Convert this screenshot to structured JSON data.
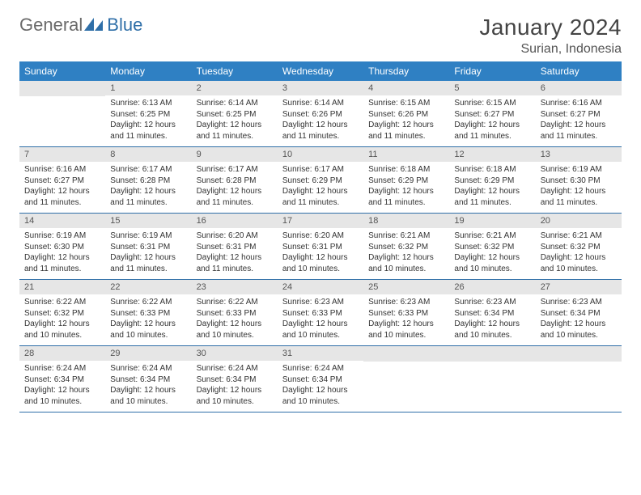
{
  "logo": {
    "textGray": "General",
    "textBlue": "Blue"
  },
  "title": "January 2024",
  "location": "Surian, Indonesia",
  "colors": {
    "header_bg": "#2f80c3",
    "header_text": "#ffffff",
    "daynum_bg": "#e6e6e6",
    "rule": "#2f6fa8",
    "logo_gray": "#6a6a6a",
    "logo_blue": "#2f6fa8"
  },
  "weekdays": [
    "Sunday",
    "Monday",
    "Tuesday",
    "Wednesday",
    "Thursday",
    "Friday",
    "Saturday"
  ],
  "days": [
    {
      "n": 1,
      "sr": "6:13 AM",
      "ss": "6:25 PM",
      "dl": "12 hours and 11 minutes."
    },
    {
      "n": 2,
      "sr": "6:14 AM",
      "ss": "6:25 PM",
      "dl": "12 hours and 11 minutes."
    },
    {
      "n": 3,
      "sr": "6:14 AM",
      "ss": "6:26 PM",
      "dl": "12 hours and 11 minutes."
    },
    {
      "n": 4,
      "sr": "6:15 AM",
      "ss": "6:26 PM",
      "dl": "12 hours and 11 minutes."
    },
    {
      "n": 5,
      "sr": "6:15 AM",
      "ss": "6:27 PM",
      "dl": "12 hours and 11 minutes."
    },
    {
      "n": 6,
      "sr": "6:16 AM",
      "ss": "6:27 PM",
      "dl": "12 hours and 11 minutes."
    },
    {
      "n": 7,
      "sr": "6:16 AM",
      "ss": "6:27 PM",
      "dl": "12 hours and 11 minutes."
    },
    {
      "n": 8,
      "sr": "6:17 AM",
      "ss": "6:28 PM",
      "dl": "12 hours and 11 minutes."
    },
    {
      "n": 9,
      "sr": "6:17 AM",
      "ss": "6:28 PM",
      "dl": "12 hours and 11 minutes."
    },
    {
      "n": 10,
      "sr": "6:17 AM",
      "ss": "6:29 PM",
      "dl": "12 hours and 11 minutes."
    },
    {
      "n": 11,
      "sr": "6:18 AM",
      "ss": "6:29 PM",
      "dl": "12 hours and 11 minutes."
    },
    {
      "n": 12,
      "sr": "6:18 AM",
      "ss": "6:29 PM",
      "dl": "12 hours and 11 minutes."
    },
    {
      "n": 13,
      "sr": "6:19 AM",
      "ss": "6:30 PM",
      "dl": "12 hours and 11 minutes."
    },
    {
      "n": 14,
      "sr": "6:19 AM",
      "ss": "6:30 PM",
      "dl": "12 hours and 11 minutes."
    },
    {
      "n": 15,
      "sr": "6:19 AM",
      "ss": "6:31 PM",
      "dl": "12 hours and 11 minutes."
    },
    {
      "n": 16,
      "sr": "6:20 AM",
      "ss": "6:31 PM",
      "dl": "12 hours and 11 minutes."
    },
    {
      "n": 17,
      "sr": "6:20 AM",
      "ss": "6:31 PM",
      "dl": "12 hours and 10 minutes."
    },
    {
      "n": 18,
      "sr": "6:21 AM",
      "ss": "6:32 PM",
      "dl": "12 hours and 10 minutes."
    },
    {
      "n": 19,
      "sr": "6:21 AM",
      "ss": "6:32 PM",
      "dl": "12 hours and 10 minutes."
    },
    {
      "n": 20,
      "sr": "6:21 AM",
      "ss": "6:32 PM",
      "dl": "12 hours and 10 minutes."
    },
    {
      "n": 21,
      "sr": "6:22 AM",
      "ss": "6:32 PM",
      "dl": "12 hours and 10 minutes."
    },
    {
      "n": 22,
      "sr": "6:22 AM",
      "ss": "6:33 PM",
      "dl": "12 hours and 10 minutes."
    },
    {
      "n": 23,
      "sr": "6:22 AM",
      "ss": "6:33 PM",
      "dl": "12 hours and 10 minutes."
    },
    {
      "n": 24,
      "sr": "6:23 AM",
      "ss": "6:33 PM",
      "dl": "12 hours and 10 minutes."
    },
    {
      "n": 25,
      "sr": "6:23 AM",
      "ss": "6:33 PM",
      "dl": "12 hours and 10 minutes."
    },
    {
      "n": 26,
      "sr": "6:23 AM",
      "ss": "6:34 PM",
      "dl": "12 hours and 10 minutes."
    },
    {
      "n": 27,
      "sr": "6:23 AM",
      "ss": "6:34 PM",
      "dl": "12 hours and 10 minutes."
    },
    {
      "n": 28,
      "sr": "6:24 AM",
      "ss": "6:34 PM",
      "dl": "12 hours and 10 minutes."
    },
    {
      "n": 29,
      "sr": "6:24 AM",
      "ss": "6:34 PM",
      "dl": "12 hours and 10 minutes."
    },
    {
      "n": 30,
      "sr": "6:24 AM",
      "ss": "6:34 PM",
      "dl": "12 hours and 10 minutes."
    },
    {
      "n": 31,
      "sr": "6:24 AM",
      "ss": "6:34 PM",
      "dl": "12 hours and 10 minutes."
    }
  ],
  "labels": {
    "sunrise": "Sunrise:",
    "sunset": "Sunset:",
    "daylight": "Daylight:"
  },
  "start_weekday": 1,
  "total_cells": 35
}
